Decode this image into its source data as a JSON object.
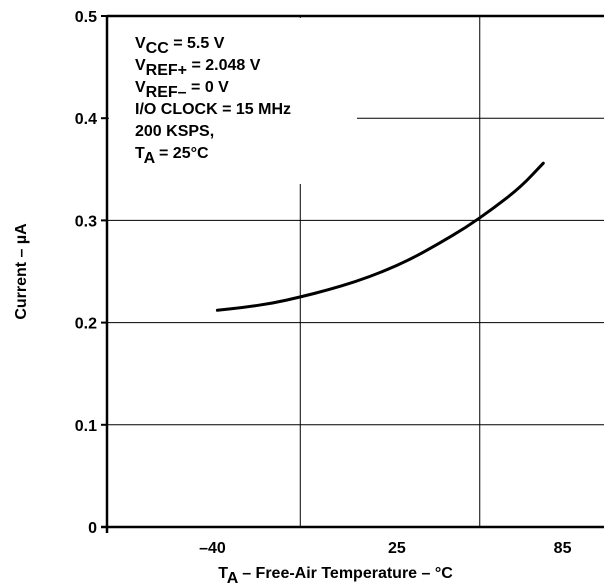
{
  "chart_data": {
    "type": "line",
    "xlabel_main": "T",
    "xlabel_sub": "A",
    "xlabel_rest": " – Free-Air Temperature – °C",
    "ylabel": "Current – µA",
    "x_ticks": [
      "–40",
      "25",
      "85"
    ],
    "y_ticks": [
      "0",
      "0.1",
      "0.2",
      "0.3",
      "0.4",
      "0.5"
    ],
    "xlim": [
      -80,
      100
    ],
    "ylim": [
      0,
      0.5
    ],
    "grid": true,
    "conditions": [
      {
        "main": "V",
        "sub": "CC",
        "rest": " = 5.5 V"
      },
      {
        "main": "V",
        "sub": "REF+",
        "rest": " = 2.048 V"
      },
      {
        "main": "V",
        "sub": "REF–",
        "rest": " = 0 V"
      },
      {
        "main": "I/O CLOCK = 15 MHz",
        "sub": "",
        "rest": ""
      },
      {
        "main": "200 KSPS,",
        "sub": "",
        "rest": ""
      },
      {
        "main": "T",
        "sub": "A",
        "rest": " = 25°C"
      }
    ],
    "series": [
      {
        "x": [
          -40,
          -30,
          -20,
          -10,
          0,
          10,
          20,
          30,
          40,
          50,
          60,
          70,
          78
        ],
        "values": [
          0.212,
          0.215,
          0.219,
          0.225,
          0.232,
          0.24,
          0.25,
          0.262,
          0.277,
          0.293,
          0.312,
          0.333,
          0.356
        ]
      }
    ]
  }
}
